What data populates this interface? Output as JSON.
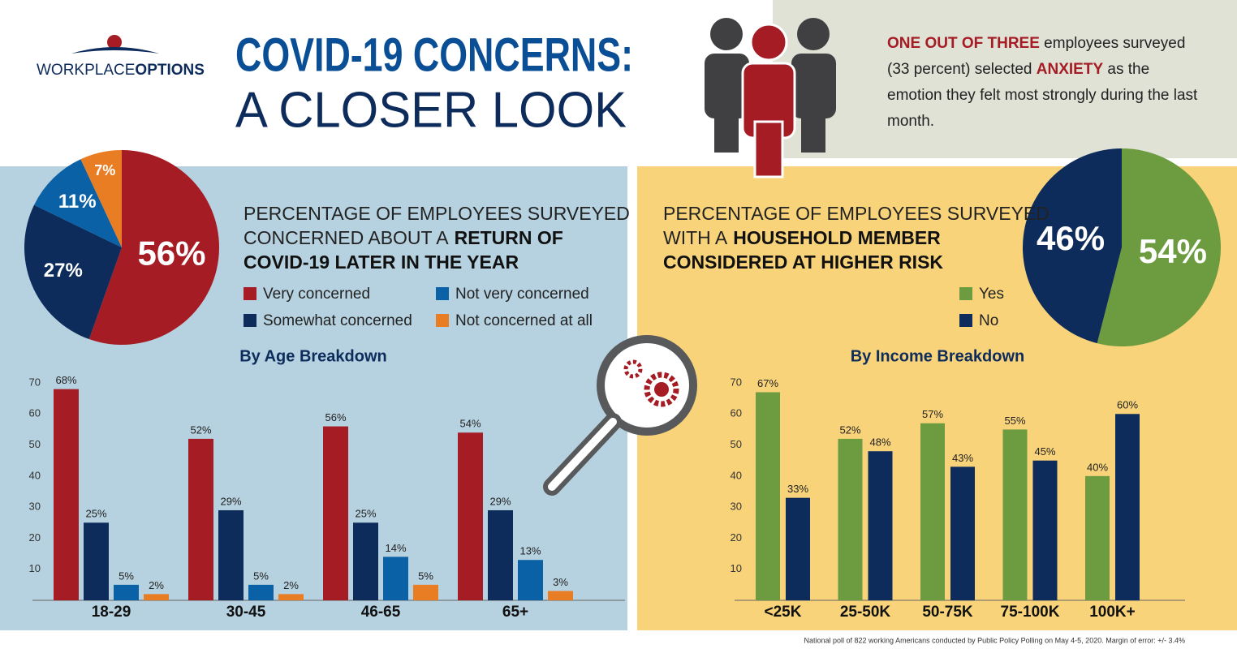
{
  "header": {
    "logo": [
      "WORKPLACE",
      "OPTIONS"
    ],
    "title": [
      "COVID-19 CONCERNS:",
      "A CLOSER LOOK"
    ]
  },
  "callout": [
    "ONE OUT OF THREE",
    " employees surveyed (33 percent) selected ",
    "ANXIETY",
    " as the emotion they felt most strongly during the last month."
  ],
  "chart_data": [
    {
      "type": "pie",
      "title": [
        [
          "PERCENTAGE OF EMPLOYEES SURVEYED"
        ],
        [
          "CONCERNED ABOUT A",
          "RETURN OF"
        ],
        [
          "COVID-19 LATER IN THE YEAR"
        ]
      ],
      "categories": [
        "Very concerned",
        "Somewhat concerned",
        "Not very concerned",
        "Not concerned at all"
      ],
      "values": [
        56,
        27,
        11,
        7
      ],
      "value_labels": [
        "56%",
        "27%",
        "11%",
        "7%"
      ],
      "colors": [
        "#a51c24",
        "#0d2c5c",
        "#0a61a6",
        "#e87d23"
      ]
    },
    {
      "type": "bar",
      "title": "By Age Breakdown",
      "categories": [
        "18-29",
        "30-45",
        "46-65",
        "65+"
      ],
      "series": [
        {
          "color": "#a51c24",
          "values": [
            68,
            52,
            56,
            54
          ],
          "value_labels": [
            "68%",
            "52%",
            "56%",
            "54%"
          ]
        },
        {
          "color": "#0d2c5c",
          "values": [
            25,
            29,
            25,
            29
          ],
          "value_labels": [
            "25%",
            "29%",
            "25%",
            "29%"
          ]
        },
        {
          "color": "#0a61a6",
          "values": [
            5,
            5,
            14,
            13
          ],
          "value_labels": [
            "5%",
            "5%",
            "14%",
            "13%"
          ]
        },
        {
          "color": "#e87d23",
          "values": [
            2,
            2,
            5,
            3
          ],
          "value_labels": [
            "2%",
            "2%",
            "5%",
            "3%"
          ]
        }
      ],
      "ylim": [
        0,
        70
      ],
      "yticks": [
        10,
        20,
        30,
        40,
        50,
        60,
        70
      ]
    },
    {
      "type": "pie",
      "title": [
        [
          "PERCENTAGE OF EMPLOYEES SURVEYED"
        ],
        [
          "WITH A",
          "HOUSEHOLD MEMBER"
        ],
        [
          "CONSIDERED AT HIGHER RISK"
        ]
      ],
      "categories": [
        "Yes",
        "No"
      ],
      "values": [
        54,
        46
      ],
      "value_labels": [
        "54%",
        "46%"
      ],
      "colors": [
        "#6d9c40",
        "#0d2c5c"
      ]
    },
    {
      "type": "bar",
      "title": "By Income Breakdown",
      "categories": [
        "<25K",
        "25-50K",
        "50-75K",
        "75-100K",
        "100K+"
      ],
      "series": [
        {
          "color": "#6d9c40",
          "values": [
            67,
            52,
            57,
            55,
            40
          ],
          "value_labels": [
            "67%",
            "52%",
            "57%",
            "55%",
            "40%"
          ]
        },
        {
          "color": "#0d2c5c",
          "values": [
            33,
            48,
            43,
            45,
            60
          ],
          "value_labels": [
            "33%",
            "48%",
            "43%",
            "45%",
            "60%"
          ]
        }
      ],
      "ylim": [
        0,
        70
      ],
      "yticks": [
        10,
        20,
        30,
        40,
        50,
        60,
        70
      ]
    }
  ],
  "footnote": "National poll of 822 working Americans conducted by Public Policy Polling on May 4-5, 2020. Margin of error:  +/- 3.4%"
}
